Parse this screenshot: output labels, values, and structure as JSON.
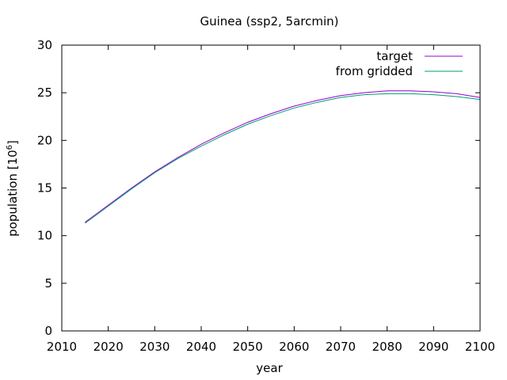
{
  "chart_data": {
    "type": "line",
    "title": "Guinea (ssp2, 5arcmin)",
    "xlabel": "year",
    "ylabel": "population [10",
    "ylabel_superscript": "6",
    "ylabel_suffix": "]",
    "xlim": [
      2010,
      2100
    ],
    "ylim": [
      0,
      30
    ],
    "xticks": [
      2010,
      2020,
      2030,
      2040,
      2050,
      2060,
      2070,
      2080,
      2090,
      2100
    ],
    "yticks": [
      0,
      5,
      10,
      15,
      20,
      25,
      30
    ],
    "grid": false,
    "legend_position": "top-right",
    "x": [
      2015,
      2020,
      2025,
      2030,
      2035,
      2040,
      2045,
      2050,
      2055,
      2060,
      2065,
      2070,
      2075,
      2080,
      2085,
      2090,
      2095,
      2100
    ],
    "series": [
      {
        "name": "target",
        "color": "#9400d3",
        "values": [
          11.4,
          13.2,
          15.0,
          16.7,
          18.2,
          19.6,
          20.8,
          21.9,
          22.8,
          23.6,
          24.2,
          24.7,
          25.0,
          25.2,
          25.2,
          25.1,
          24.9,
          24.5
        ]
      },
      {
        "name": "from gridded",
        "color": "#009e73",
        "values": [
          11.3,
          13.1,
          14.9,
          16.6,
          18.1,
          19.4,
          20.6,
          21.7,
          22.6,
          23.4,
          24.0,
          24.5,
          24.8,
          24.9,
          24.9,
          24.8,
          24.6,
          24.3
        ]
      }
    ]
  }
}
